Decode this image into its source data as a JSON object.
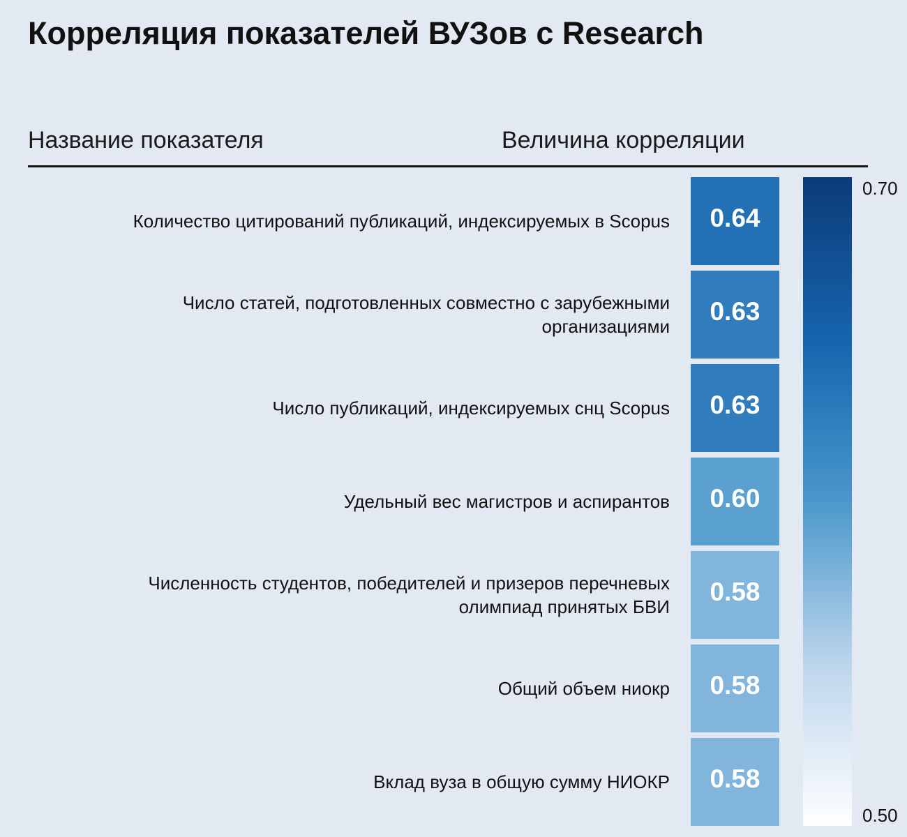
{
  "title": "Корреляция показателей ВУЗов с Research",
  "headers": {
    "name": "Название показателя",
    "value": "Величина корреляции"
  },
  "chart_data": {
    "type": "heatmap",
    "rows": [
      "Количество цитирований публикаций, индексируемых в  Scopus",
      "Число статей, подготовленных совместно с зарубежными\nорганизациями",
      "Число публикаций, индексируемых снц Scopus",
      "Удельный вес магистров и аспирантов",
      "Численность студентов, победителей и призеров перечневых\nолимпиад принятых БВИ",
      "Общий объем ниокр",
      "Вклад вуза в общую сумму НИОКР"
    ],
    "values": [
      0.64,
      0.63,
      0.63,
      0.6,
      0.58,
      0.58,
      0.58
    ],
    "value_labels": [
      "0.64",
      "0.63",
      "0.63",
      "0.60",
      "0.58",
      "0.58",
      "0.58"
    ],
    "colorbar": {
      "min": 0.5,
      "max": 0.7,
      "min_label": "0.50",
      "max_label": "0.70"
    },
    "colormap": "Blues"
  }
}
